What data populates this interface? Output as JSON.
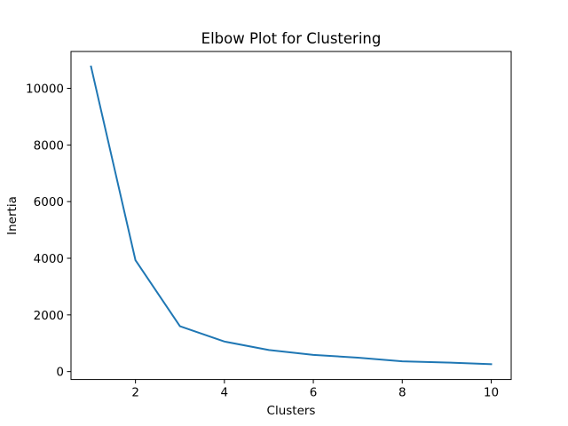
{
  "chart_data": {
    "type": "line",
    "title": "Elbow Plot for Clustering",
    "xlabel": "Clusters",
    "ylabel": "Inertia",
    "x": [
      1,
      2,
      3,
      4,
      5,
      6,
      7,
      8,
      9,
      10
    ],
    "series": [
      {
        "values": [
          10770,
          3930,
          1600,
          1060,
          760,
          590,
          490,
          360,
          320,
          260
        ],
        "color": "#1f77b4"
      }
    ],
    "xticks": [
      2,
      4,
      6,
      8,
      10
    ],
    "yticks": [
      0,
      2000,
      4000,
      6000,
      8000,
      10000
    ],
    "xlim": [
      0.55,
      10.45
    ],
    "ylim": [
      -280,
      11300
    ],
    "grid": false,
    "legend": "none"
  }
}
